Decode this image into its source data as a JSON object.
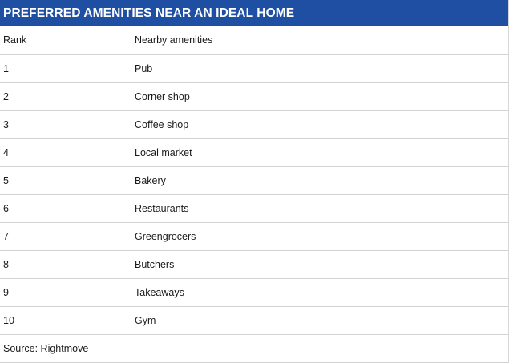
{
  "title": "PREFERRED AMENITIES NEAR AN IDEAL HOME",
  "headers": {
    "rank": "Rank",
    "amenity": "Nearby amenities"
  },
  "source": "Source: Rightmove",
  "colors": {
    "title_background": "#1f4fa3",
    "title_text": "#ffffff",
    "row_divider": "#d2d2d2"
  },
  "chart_data": {
    "type": "table",
    "title": "PREFERRED AMENITIES NEAR AN IDEAL HOME",
    "columns": [
      "Rank",
      "Nearby amenities"
    ],
    "rows": [
      [
        "1",
        "Pub"
      ],
      [
        "2",
        "Corner shop"
      ],
      [
        "3",
        "Coffee shop"
      ],
      [
        "4",
        "Local market"
      ],
      [
        "5",
        "Bakery"
      ],
      [
        "6",
        "Restaurants"
      ],
      [
        "7",
        "Greengrocers"
      ],
      [
        "8",
        "Butchers"
      ],
      [
        "9",
        "Takeaways"
      ],
      [
        "10",
        "Gym"
      ]
    ],
    "source": "Source: Rightmove"
  }
}
